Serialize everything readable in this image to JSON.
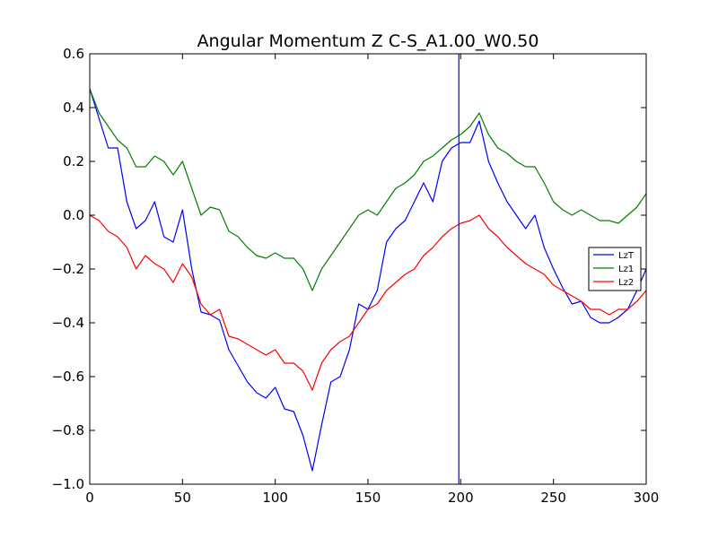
{
  "chart_data": {
    "type": "line",
    "title": "Angular Momentum Z C-S_A1.00_W0.50",
    "xlabel": "",
    "ylabel": "",
    "xlim": [
      0,
      300
    ],
    "ylim": [
      -1.0,
      0.6
    ],
    "x_ticks": [
      0,
      50,
      100,
      150,
      200,
      250,
      300
    ],
    "x_tick_labels": [
      "0",
      "50",
      "100",
      "150",
      "200",
      "250",
      "300"
    ],
    "y_ticks": [
      -1.0,
      -0.8,
      -0.6,
      -0.4,
      -0.2,
      0.0,
      0.2,
      0.4,
      0.6
    ],
    "y_tick_labels": [
      "−1.0",
      "−0.8",
      "−0.6",
      "−0.4",
      "−0.2",
      "0.0",
      "0.2",
      "0.4",
      "0.6"
    ],
    "grid": false,
    "legend_position": "right",
    "vertical_line": {
      "x": 199,
      "color": "#0000ff"
    },
    "x": [
      0,
      5,
      10,
      15,
      20,
      25,
      30,
      35,
      40,
      45,
      50,
      55,
      60,
      65,
      70,
      75,
      80,
      85,
      90,
      95,
      100,
      105,
      110,
      115,
      120,
      125,
      130,
      135,
      140,
      145,
      150,
      155,
      160,
      165,
      170,
      175,
      180,
      185,
      190,
      195,
      200,
      205,
      210,
      215,
      220,
      225,
      230,
      235,
      240,
      245,
      250,
      255,
      260,
      265,
      270,
      275,
      280,
      285,
      290,
      295,
      300
    ],
    "series": [
      {
        "name": "LzT",
        "color": "#0000ff",
        "values": [
          0.47,
          0.36,
          0.25,
          0.25,
          0.05,
          -0.05,
          -0.02,
          0.05,
          -0.08,
          -0.1,
          0.02,
          -0.2,
          -0.36,
          -0.37,
          -0.39,
          -0.5,
          -0.56,
          -0.62,
          -0.66,
          -0.68,
          -0.64,
          -0.72,
          -0.73,
          -0.82,
          -0.95,
          -0.78,
          -0.62,
          -0.6,
          -0.5,
          -0.33,
          -0.35,
          -0.28,
          -0.1,
          -0.05,
          -0.02,
          0.05,
          0.12,
          0.05,
          0.2,
          0.25,
          0.27,
          0.27,
          0.35,
          0.2,
          0.12,
          0.05,
          0.0,
          -0.05,
          0.0,
          -0.12,
          -0.2,
          -0.27,
          -0.33,
          -0.32,
          -0.38,
          -0.4,
          -0.4,
          -0.38,
          -0.35,
          -0.28,
          -0.2
        ]
      },
      {
        "name": "Lz1",
        "color": "#008000",
        "values": [
          0.47,
          0.38,
          0.33,
          0.28,
          0.25,
          0.18,
          0.18,
          0.22,
          0.2,
          0.15,
          0.2,
          0.1,
          0.0,
          0.03,
          0.02,
          -0.06,
          -0.08,
          -0.12,
          -0.15,
          -0.16,
          -0.14,
          -0.16,
          -0.16,
          -0.2,
          -0.28,
          -0.2,
          -0.15,
          -0.1,
          -0.05,
          0.0,
          0.02,
          0.0,
          0.05,
          0.1,
          0.12,
          0.15,
          0.2,
          0.22,
          0.25,
          0.28,
          0.3,
          0.33,
          0.38,
          0.3,
          0.25,
          0.23,
          0.2,
          0.18,
          0.18,
          0.12,
          0.05,
          0.02,
          0.0,
          0.02,
          0.0,
          -0.02,
          -0.02,
          -0.03,
          0.0,
          0.03,
          0.08
        ]
      },
      {
        "name": "Lz2",
        "color": "#ff0000",
        "values": [
          0.0,
          -0.02,
          -0.06,
          -0.08,
          -0.12,
          -0.2,
          -0.15,
          -0.18,
          -0.2,
          -0.25,
          -0.18,
          -0.23,
          -0.33,
          -0.37,
          -0.35,
          -0.45,
          -0.46,
          -0.48,
          -0.5,
          -0.52,
          -0.5,
          -0.55,
          -0.55,
          -0.58,
          -0.65,
          -0.55,
          -0.5,
          -0.47,
          -0.45,
          -0.4,
          -0.35,
          -0.33,
          -0.28,
          -0.25,
          -0.22,
          -0.2,
          -0.15,
          -0.12,
          -0.08,
          -0.05,
          -0.03,
          -0.02,
          0.0,
          -0.05,
          -0.08,
          -0.12,
          -0.15,
          -0.18,
          -0.2,
          -0.22,
          -0.26,
          -0.28,
          -0.3,
          -0.32,
          -0.35,
          -0.35,
          -0.37,
          -0.35,
          -0.35,
          -0.32,
          -0.28
        ]
      }
    ]
  }
}
